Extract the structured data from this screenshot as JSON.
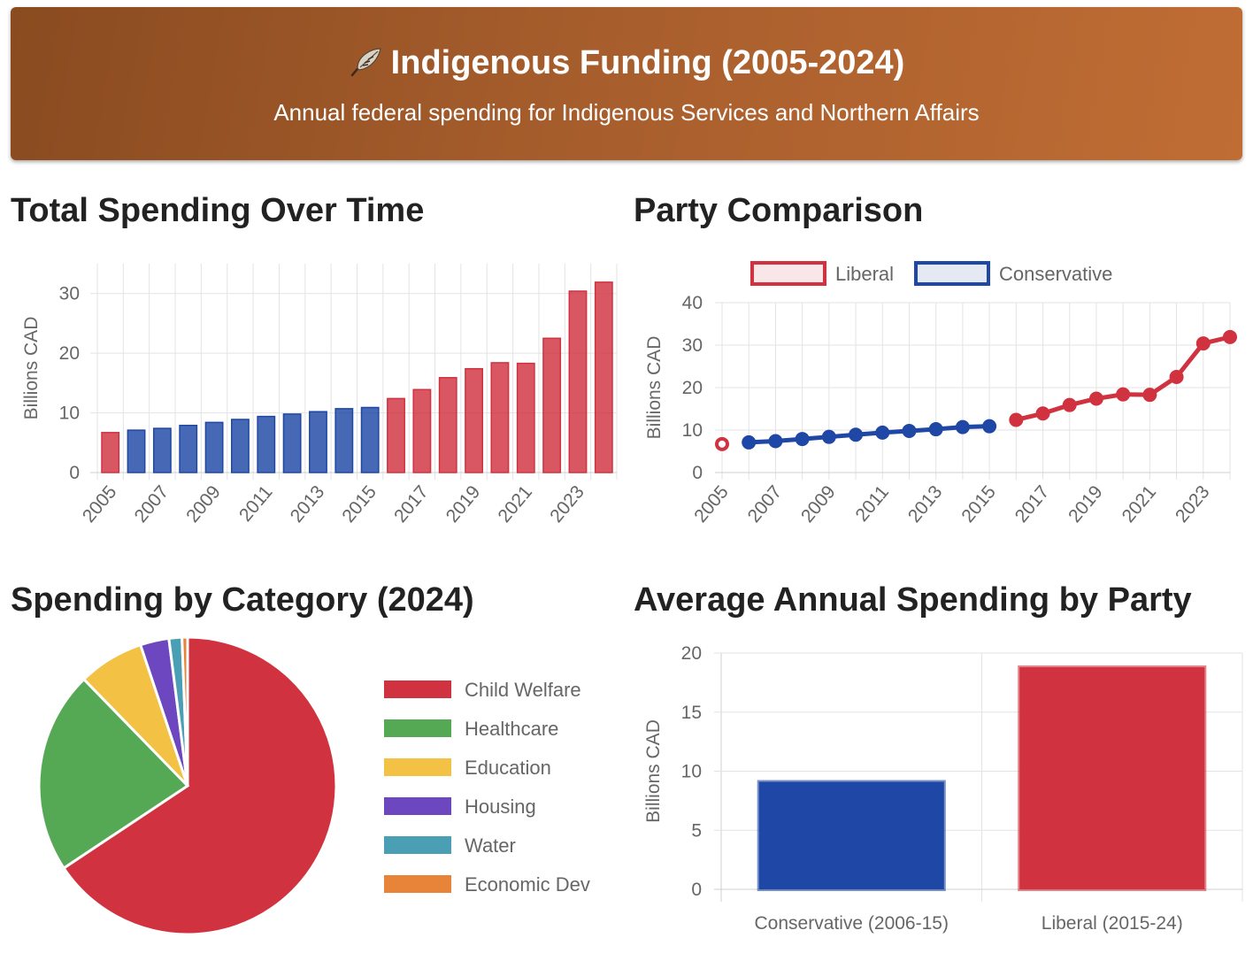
{
  "header": {
    "title": "Indigenous Funding (2005-2024)",
    "subtitle": "Annual federal spending for Indigenous Services and Northern Affairs",
    "icon": "feather-icon"
  },
  "colors": {
    "liberal": "#d0323f",
    "conservative": "#1f47a5",
    "header_start": "#8a4b20",
    "header_end": "#c06d34"
  },
  "panels": {
    "total": {
      "title": "Total Spending Over Time"
    },
    "party": {
      "title": "Party Comparison"
    },
    "category": {
      "title": "Spending by Category (2024)"
    },
    "average": {
      "title": "Average Annual Spending by Party"
    }
  },
  "chart_data": [
    {
      "id": "total",
      "type": "bar",
      "title": "Total Spending Over Time",
      "ylabel": "Billions CAD",
      "ylim": [
        0,
        35
      ],
      "yticks": [
        0,
        10,
        20,
        30
      ],
      "grid": true,
      "categories": [
        2005,
        2006,
        2007,
        2008,
        2009,
        2010,
        2011,
        2012,
        2013,
        2014,
        2015,
        2016,
        2017,
        2018,
        2019,
        2020,
        2021,
        2022,
        2023,
        2024
      ],
      "xticks": [
        "2005",
        "2007",
        "2009",
        "2011",
        "2013",
        "2015",
        "2017",
        "2019",
        "2021",
        "2023"
      ],
      "values": [
        6.7,
        7.1,
        7.4,
        7.9,
        8.4,
        8.9,
        9.4,
        9.8,
        10.2,
        10.7,
        10.9,
        12.4,
        13.9,
        15.9,
        17.4,
        18.4,
        18.3,
        22.5,
        30.4,
        31.9
      ],
      "bar_party": [
        "Liberal",
        "Conservative",
        "Conservative",
        "Conservative",
        "Conservative",
        "Conservative",
        "Conservative",
        "Conservative",
        "Conservative",
        "Conservative",
        "Conservative",
        "Liberal",
        "Liberal",
        "Liberal",
        "Liberal",
        "Liberal",
        "Liberal",
        "Liberal",
        "Liberal",
        "Liberal"
      ]
    },
    {
      "id": "party",
      "type": "line",
      "title": "Party Comparison",
      "ylabel": "Billions CAD",
      "ylim": [
        0,
        40
      ],
      "yticks": [
        0,
        10,
        20,
        30,
        40
      ],
      "grid": true,
      "legend_position": "top",
      "x": [
        2005,
        2006,
        2007,
        2008,
        2009,
        2010,
        2011,
        2012,
        2013,
        2014,
        2015,
        2016,
        2017,
        2018,
        2019,
        2020,
        2021,
        2022,
        2023,
        2024
      ],
      "xticks": [
        "2005",
        "2007",
        "2009",
        "2011",
        "2013",
        "2015",
        "2017",
        "2019",
        "2021",
        "2023"
      ],
      "series": [
        {
          "name": "Liberal",
          "color": "#d0323f",
          "values": [
            6.7,
            null,
            null,
            null,
            null,
            null,
            null,
            null,
            null,
            null,
            null,
            12.4,
            13.9,
            15.9,
            17.4,
            18.4,
            18.3,
            22.5,
            30.4,
            31.9
          ]
        },
        {
          "name": "Conservative",
          "color": "#1f47a5",
          "values": [
            null,
            7.1,
            7.4,
            7.9,
            8.4,
            8.9,
            9.4,
            9.8,
            10.2,
            10.7,
            10.9,
            null,
            null,
            null,
            null,
            null,
            null,
            null,
            null,
            null
          ]
        }
      ]
    },
    {
      "id": "category",
      "type": "pie",
      "title": "Spending by Category (2024)",
      "legend_position": "right",
      "labels": [
        "Child Welfare",
        "Healthcare",
        "Education",
        "Housing",
        "Water",
        "Economic Dev"
      ],
      "values": [
        65.2,
        21.9,
        7.1,
        3.1,
        1.4,
        0.6
      ],
      "colors": [
        "#d0323f",
        "#55a954",
        "#f3c244",
        "#6c47c0",
        "#4a9fb5",
        "#e8843a"
      ]
    },
    {
      "id": "average",
      "type": "bar",
      "title": "Average Annual Spending by Party",
      "ylabel": "Billions CAD",
      "ylim": [
        0,
        20
      ],
      "yticks": [
        0,
        5,
        10,
        15,
        20
      ],
      "grid": true,
      "categories": [
        "Conservative (2006-15)",
        "Liberal (2015-24)"
      ],
      "values": [
        9.1,
        18.8
      ],
      "colors": [
        "#1f47a5",
        "#d0323f"
      ]
    }
  ]
}
